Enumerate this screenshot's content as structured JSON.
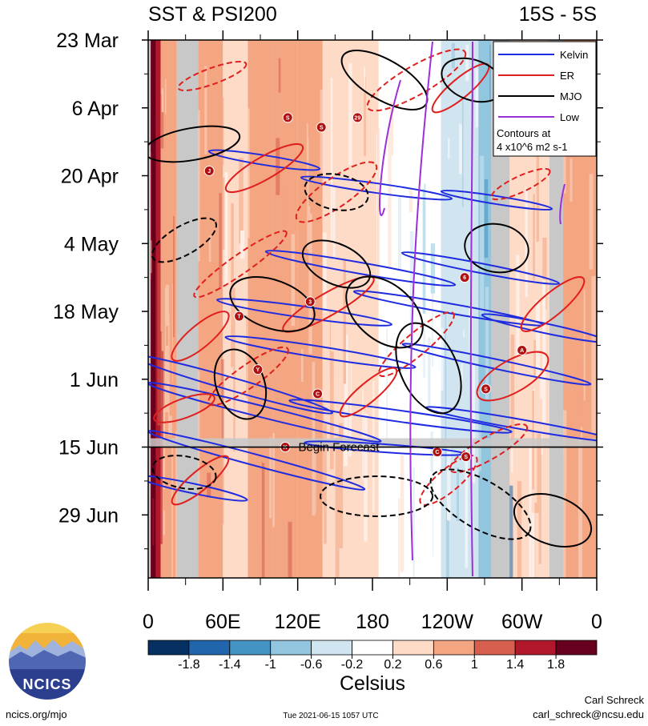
{
  "title_left": "SST & PSI200",
  "title_right": "15S - 5S",
  "legend": {
    "entries": [
      {
        "label": "Kelvin",
        "color": "#1f2be0"
      },
      {
        "label": "ER",
        "color": "#e01f1f"
      },
      {
        "label": "MJO",
        "color": "#000000"
      },
      {
        "label": "Low",
        "color": "#9b30d9"
      }
    ],
    "note_line1": "Contours at",
    "note_line2": "4 x10^6 m2 s-1"
  },
  "forecast_label": "Begin Forecast",
  "colorbar": {
    "unit": "Celsius",
    "ticks": [
      "-1.8",
      "-1.4",
      "-1",
      "-0.6",
      "-0.2",
      "0.2",
      "0.6",
      "1",
      "1.4",
      "1.8"
    ],
    "colors": [
      "#053061",
      "#2166ac",
      "#4393c3",
      "#92c5de",
      "#d1e5f0",
      "#ffffff",
      "#fddbc7",
      "#f4a582",
      "#d6604d",
      "#b2182b",
      "#67001f"
    ]
  },
  "logo": {
    "text": "NCICS"
  },
  "footer": {
    "url": "ncics.org/mjo",
    "timestamp": "Tue 2021-06-15 1057 UTC",
    "author": "Carl Schreck",
    "email": "carl_schreck@ncsu.edu"
  },
  "storms": [
    {
      "code": "S",
      "lon": 112,
      "day": 16
    },
    {
      "code": "S",
      "lon": 139,
      "day": 18
    },
    {
      "code": "29",
      "lon": 168,
      "day": 16
    },
    {
      "code": "J",
      "lon": 49,
      "day": 27
    },
    {
      "code": "T",
      "lon": 73,
      "day": 57
    },
    {
      "code": "3",
      "lon": 130,
      "day": 54
    },
    {
      "code": "Y",
      "lon": 88,
      "day": 68
    },
    {
      "code": "C",
      "lon": 136,
      "day": 73
    },
    {
      "code": "K",
      "lon": 110,
      "day": 84
    },
    {
      "code": "C",
      "lon": 232,
      "day": 85
    },
    {
      "code": "S",
      "lon": 255,
      "day": 86
    },
    {
      "code": "6",
      "lon": 254,
      "day": 49
    },
    {
      "code": "A",
      "lon": 300,
      "day": 64
    },
    {
      "code": "S",
      "lon": 271,
      "day": 72
    }
  ],
  "chart_data": {
    "type": "heatmap",
    "title": "SST & PSI200",
    "region": "15S - 5S",
    "xlabel": "",
    "ylabel": "",
    "x_ticks": [
      "0",
      "60E",
      "120E",
      "180",
      "120W",
      "60W",
      "0"
    ],
    "x_tick_values": [
      0,
      60,
      120,
      180,
      240,
      300,
      360
    ],
    "xlim": [
      0,
      360
    ],
    "y_ticks": [
      "23 Mar",
      "6 Apr",
      "20 Apr",
      "4 May",
      "18 May",
      "1 Jun",
      "15 Jun",
      "29 Jun"
    ],
    "y_tick_days": [
      0,
      14,
      28,
      42,
      56,
      70,
      84,
      98
    ],
    "ylim_days": [
      0,
      111
    ],
    "forecast_start_day": 84,
    "land_masked_lon": [
      [
        0,
        2
      ],
      [
        23,
        40
      ],
      [
        275,
        290
      ],
      [
        322,
        333
      ]
    ],
    "sst_anomaly_bands": [
      {
        "lon": [
          0,
          10
        ],
        "value": 1.4
      },
      {
        "lon": [
          2,
          6
        ],
        "value": 1.9
      },
      {
        "lon": [
          10,
          23
        ],
        "value": 0.8
      },
      {
        "lon": [
          40,
          60
        ],
        "value": 0.9
      },
      {
        "lon": [
          60,
          80
        ],
        "value": 0.5
      },
      {
        "lon": [
          80,
          100
        ],
        "value": 0.7
      },
      {
        "lon": [
          100,
          120
        ],
        "value": 0.9
      },
      {
        "lon": [
          120,
          140
        ],
        "value": 0.6
      },
      {
        "lon": [
          140,
          160
        ],
        "value": 0.4
      },
      {
        "lon": [
          160,
          185
        ],
        "value": 0.2
      },
      {
        "lon": [
          185,
          210
        ],
        "value": 0.0
      },
      {
        "lon": [
          210,
          235
        ],
        "value": -0.2
      },
      {
        "lon": [
          235,
          265
        ],
        "value": -0.4
      },
      {
        "lon": [
          265,
          275
        ],
        "value": -0.8
      },
      {
        "lon": [
          275,
          290
        ],
        "value": -1.2
      },
      {
        "lon": [
          290,
          322
        ],
        "value": 0.4
      },
      {
        "lon": [
          333,
          360
        ],
        "value": 0.6
      }
    ],
    "contour_interval": "4 x10^6 m2 s-1",
    "series": [
      {
        "name": "Kelvin",
        "color": "#1f2be0"
      },
      {
        "name": "ER",
        "color": "#e01f1f"
      },
      {
        "name": "MJO",
        "color": "#000000"
      },
      {
        "name": "Low",
        "color": "#9b30d9"
      }
    ],
    "colorbar_levels": [
      -1.8,
      -1.4,
      -1,
      -0.6,
      -0.2,
      0.2,
      0.6,
      1,
      1.4,
      1.8
    ],
    "colorbar_unit": "Celsius"
  }
}
